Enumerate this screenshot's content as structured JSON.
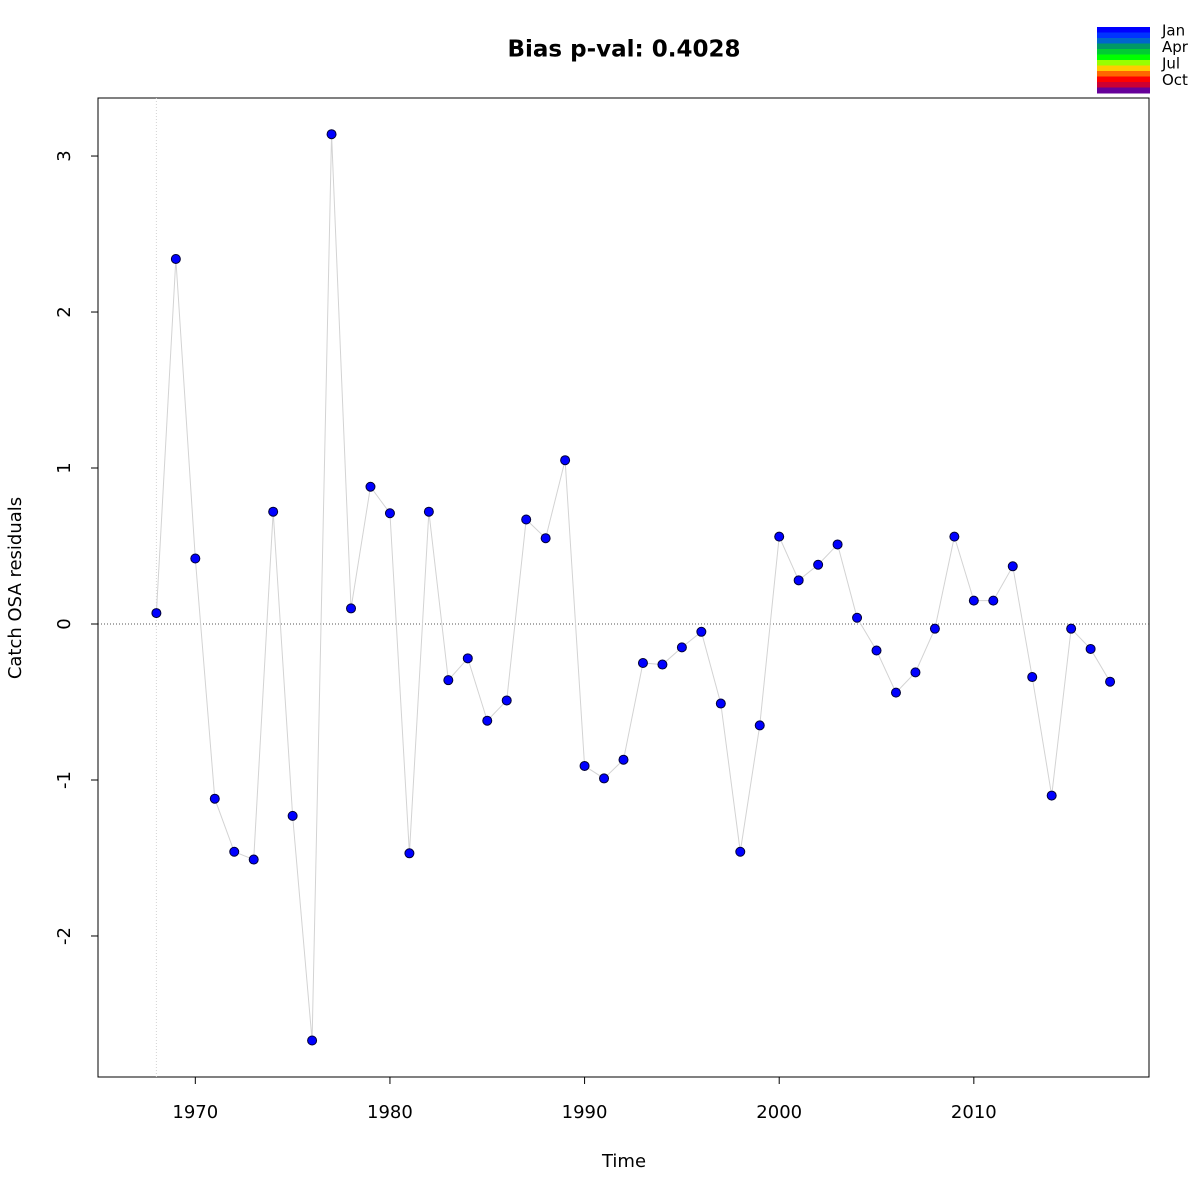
{
  "chart_data": {
    "type": "line",
    "title": "Bias p-val: 0.4028",
    "title_color": "#228b22",
    "x_label": "Time",
    "y_label": "Catch OSA residuals",
    "x": [
      1968,
      1969,
      1970,
      1971,
      1972,
      1973,
      1974,
      1975,
      1976,
      1977,
      1978,
      1979,
      1980,
      1981,
      1982,
      1983,
      1984,
      1985,
      1986,
      1987,
      1988,
      1989,
      1990,
      1991,
      1992,
      1993,
      1994,
      1995,
      1996,
      1997,
      1998,
      1999,
      2000,
      2001,
      2002,
      2003,
      2004,
      2005,
      2006,
      2007,
      2008,
      2009,
      2010,
      2011,
      2012,
      2013,
      2014,
      2015,
      2016,
      2017
    ],
    "series": [
      {
        "name": "Catch OSA residuals",
        "color": "#0000ff",
        "line_color": "#d3d3d3",
        "values": [
          0.07,
          2.34,
          0.42,
          -1.12,
          -1.46,
          -1.51,
          0.72,
          -1.23,
          -2.67,
          3.14,
          0.1,
          0.88,
          0.71,
          -1.47,
          0.72,
          -0.36,
          -0.22,
          -0.62,
          -0.49,
          0.67,
          0.55,
          1.05,
          -0.91,
          -0.99,
          -0.87,
          -0.25,
          -0.26,
          -0.15,
          -0.05,
          -0.51,
          -1.46,
          -0.65,
          0.56,
          0.28,
          0.38,
          0.51,
          0.04,
          -0.17,
          -0.44,
          -0.31,
          -0.03,
          0.56,
          0.15,
          0.15,
          0.37,
          -0.34,
          -1.1,
          -0.03,
          -0.16,
          -0.37
        ]
      }
    ],
    "xlim": [
      1965,
      2019
    ],
    "ylim": [
      -2.904,
      3.372
    ],
    "xticks": [
      1970,
      1980,
      1990,
      2000,
      2010
    ],
    "yticks": [
      -2,
      -1,
      0,
      1,
      2,
      3
    ],
    "reference_line": 0,
    "start_line": 1968,
    "month_legend": {
      "labels": [
        "Jan",
        "Apr",
        "Jul",
        "Oct"
      ],
      "colors": [
        "#0000ff",
        "#0033ff",
        "#0066cc",
        "#009966",
        "#00cc33",
        "#00ff00",
        "#99ff00",
        "#ffcc00",
        "#ff6600",
        "#ff0000",
        "#cc0033",
        "#660099"
      ]
    }
  }
}
